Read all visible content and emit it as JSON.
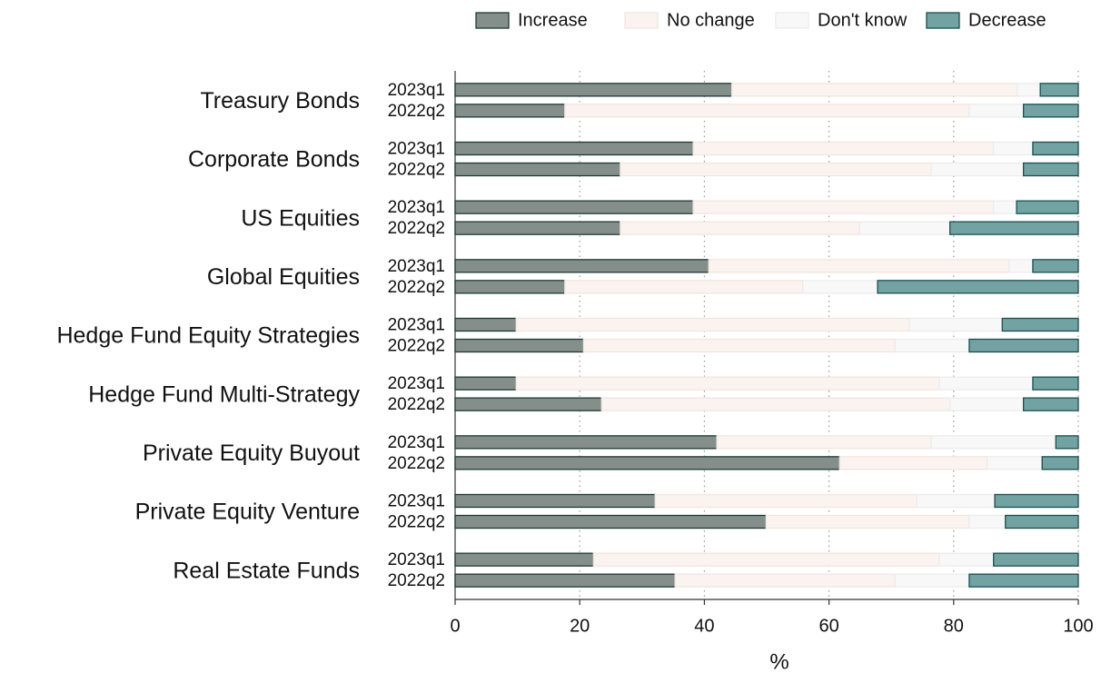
{
  "chart_data": {
    "type": "stacked_barh",
    "xlabel": "%",
    "legend": "top",
    "categories": [
      "Treasury Bonds",
      "Corporate Bonds",
      "US Equities",
      "Global Equities",
      "Hedge Fund Equity Strategies",
      "Hedge Fund Multi-Strategy",
      "Private Equity Buyout",
      "Private Equity Venture",
      "Real Estate Funds"
    ],
    "subcategories": [
      "2023q1",
      "2022q2"
    ],
    "series": [
      {
        "name": "Increase",
        "color": "#848f8b",
        "edge": "#1f3a34",
        "values": [
          [
            44.4,
            17.6
          ],
          [
            38.2,
            26.5
          ],
          [
            38.2,
            26.5
          ],
          [
            40.7,
            17.6
          ],
          [
            9.8,
            20.6
          ],
          [
            9.8,
            23.5
          ],
          [
            42.0,
            61.7
          ],
          [
            32.1,
            49.9
          ],
          [
            22.2,
            35.3
          ]
        ]
      },
      {
        "name": "No change",
        "color": "#fbf3ef",
        "edge": "#f1e6e0",
        "values": [
          [
            45.8,
            64.9
          ],
          [
            48.2,
            49.9
          ],
          [
            48.2,
            38.4
          ],
          [
            48.2,
            38.2
          ],
          [
            63.1,
            50.0
          ],
          [
            67.9,
            55.9
          ],
          [
            34.4,
            23.7
          ],
          [
            42.0,
            32.6
          ],
          [
            55.5,
            35.3
          ]
        ]
      },
      {
        "name": "Don't know",
        "color": "#f8f8f8",
        "edge": "#ececec",
        "values": [
          [
            3.7,
            8.7
          ],
          [
            6.3,
            14.8
          ],
          [
            3.7,
            14.5
          ],
          [
            3.8,
            12.0
          ],
          [
            14.9,
            11.9
          ],
          [
            15.0,
            11.8
          ],
          [
            20.0,
            8.8
          ],
          [
            12.5,
            5.8
          ],
          [
            8.7,
            11.9
          ]
        ]
      },
      {
        "name": "Decrease",
        "color": "#72a2a2",
        "edge": "#1d4f4f",
        "values": [
          [
            6.1,
            8.8
          ],
          [
            7.3,
            8.8
          ],
          [
            9.9,
            20.6
          ],
          [
            7.3,
            32.2
          ],
          [
            12.2,
            17.5
          ],
          [
            7.3,
            8.8
          ],
          [
            3.6,
            5.8
          ],
          [
            13.4,
            11.7
          ],
          [
            13.6,
            17.5
          ]
        ]
      }
    ],
    "xlim": [
      0,
      100
    ],
    "xticks": [
      0,
      20,
      40,
      60,
      80,
      100
    ],
    "grid": true
  }
}
